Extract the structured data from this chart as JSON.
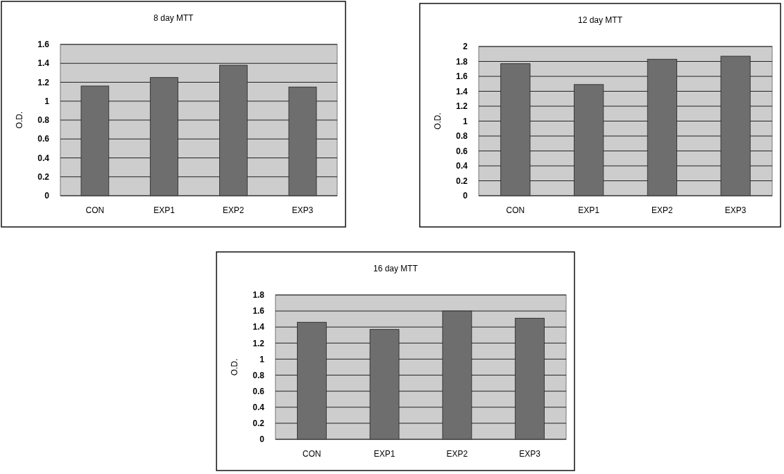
{
  "chart_data": [
    {
      "type": "bar",
      "title": "8 day MTT",
      "ylabel": "O.D.",
      "categories": [
        "CON",
        "EXP1",
        "EXP2",
        "EXP3"
      ],
      "values": [
        1.16,
        1.25,
        1.38,
        1.15
      ],
      "color": "#6e6e6e",
      "ylim": [
        0,
        1.6
      ],
      "yticks": [
        0,
        0.2,
        0.4,
        0.6,
        0.8,
        1,
        1.2,
        1.4,
        1.6
      ],
      "grid": "y"
    },
    {
      "type": "bar",
      "title": "12 day MTT",
      "ylabel": "O.D.",
      "categories": [
        "CON",
        "EXP1",
        "EXP2",
        "EXP3"
      ],
      "values": [
        1.77,
        1.49,
        1.83,
        1.87
      ],
      "color": "#6e6e6e",
      "ylim": [
        0,
        2
      ],
      "yticks": [
        0,
        0.2,
        0.4,
        0.6,
        0.8,
        1,
        1.2,
        1.4,
        1.6,
        1.8,
        2
      ],
      "grid": "y"
    },
    {
      "type": "bar",
      "title": "16 day MTT",
      "ylabel": "O.D.",
      "categories": [
        "CON",
        "EXP1",
        "EXP2",
        "EXP3"
      ],
      "values": [
        1.46,
        1.37,
        1.6,
        1.51
      ],
      "color": "#6e6e6e",
      "ylim": [
        0,
        1.8
      ],
      "yticks": [
        0,
        0.2,
        0.4,
        0.6,
        0.8,
        1,
        1.2,
        1.4,
        1.6,
        1.8
      ],
      "grid": "y"
    }
  ]
}
